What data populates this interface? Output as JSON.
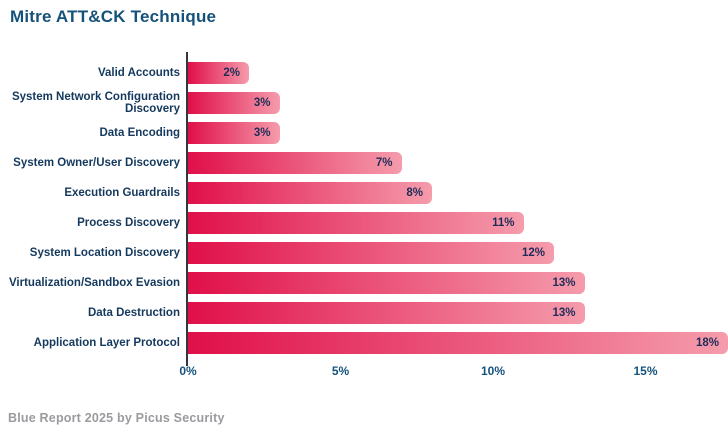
{
  "title": "Mitre ATT&CK Technique",
  "footer": "Blue Report 2025 by Picus Security",
  "colors": {
    "title": "#15527B",
    "category_label": "#14395D",
    "value_label": "#1E2B58",
    "tick_label": "#15537D",
    "axis_line": "#33373d",
    "bar_gradient_start": "#E00F4A",
    "bar_gradient_end": "#F59CAC",
    "footer_text": "#9B9B9F",
    "background": "#FFFFFF"
  },
  "chart_data": {
    "type": "bar",
    "orientation": "horizontal",
    "title": "Mitre ATT&CK Technique",
    "xlabel": "",
    "ylabel": "Mitre ATT&CK Technique",
    "grid": false,
    "legend": "none",
    "xlim": [
      0,
      17.7
    ],
    "x_ticks": [
      {
        "value": 0,
        "label": "0%"
      },
      {
        "value": 5,
        "label": "5%"
      },
      {
        "value": 10,
        "label": "10%"
      },
      {
        "value": 15,
        "label": "15%"
      }
    ],
    "categories": [
      "Valid Accounts",
      "System Network Configuration Discovery",
      "Data Encoding",
      "System Owner/User Discovery",
      "Execution Guardrails",
      "Process Discovery",
      "System Location Discovery",
      "Virtualization/Sandbox Evasion",
      "Data Destruction",
      "Application Layer Protocol"
    ],
    "values": [
      2,
      3,
      3,
      7,
      8,
      11,
      12,
      13,
      13,
      18
    ],
    "value_labels": [
      "2%",
      "3%",
      "3%",
      "7%",
      "8%",
      "11%",
      "12%",
      "13%",
      "13%",
      "18%"
    ],
    "bar_style": "gradient crimson to pink, rounded right corners, value label inside right end"
  }
}
